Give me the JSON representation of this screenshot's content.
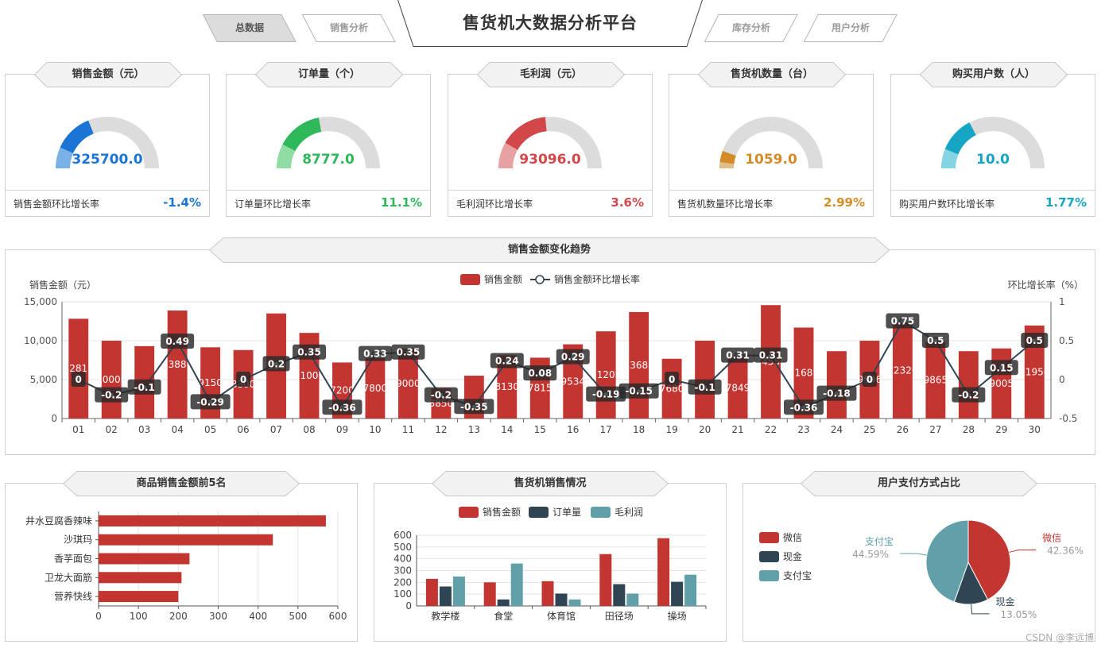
{
  "nav": {
    "tabs_left": [
      {
        "label": "总数据",
        "active": true
      },
      {
        "label": "销售分析",
        "active": false
      }
    ],
    "title": "售货机大数据分析平台",
    "tabs_right": [
      {
        "label": "库存分析",
        "active": false
      },
      {
        "label": "用户分析",
        "active": false
      }
    ]
  },
  "kpis": [
    {
      "title": "销售金额（元）",
      "value": "325700.0",
      "fill": 0.38,
      "color": "#1b75d4",
      "light": "#7ab2e8",
      "footer_label": "销售金额环比增长率",
      "footer_value": "-1.4%"
    },
    {
      "title": "订单量（个）",
      "value": "8777.0",
      "fill": 0.44,
      "color": "#2fb85a",
      "light": "#8fdca5",
      "footer_label": "订单量环比增长率",
      "footer_value": "11.1%"
    },
    {
      "title": "毛利润（元）",
      "value": "93096.0",
      "fill": 0.47,
      "color": "#d2474a",
      "light": "#e8a1a3",
      "footer_label": "毛利润环比增长率",
      "footer_value": "3.6%"
    },
    {
      "title": "售货机数量（台）",
      "value": "1059.0",
      "fill": 0.11,
      "color": "#d38c28",
      "light": "#e3bd87",
      "footer_label": "售货机数量环比增长率",
      "footer_value": "2.99%"
    },
    {
      "title": "购买用户数（人）",
      "value": "10.0",
      "fill": 0.35,
      "color": "#17a5c6",
      "light": "#85d4e3",
      "footer_label": "购买用户数环比增长率",
      "footer_value": "1.77%"
    }
  ],
  "trend": {
    "title": "销售金额变化趋势",
    "footer": "CSDN @李远博"
  },
  "top5": {
    "title": "商品销售金额前5名"
  },
  "machine": {
    "title": "售货机销售情况"
  },
  "payment": {
    "title": "用户支付方式占比"
  },
  "chart_data": [
    {
      "type": "bar",
      "name": "sales_trend",
      "title": "销售金额变化趋势",
      "legend": [
        "销售金额",
        "销售金额环比增长率"
      ],
      "ylabel": "销售金额（元）",
      "ylabel_right": "环比增长率（%）",
      "ylim": [
        0,
        15000
      ],
      "yticks": [
        "0",
        "5,000",
        "10,000",
        "15,000"
      ],
      "ylim_right": [
        -0.5,
        1
      ],
      "yticks_right": [
        "-0.5",
        "0",
        "0.5",
        "1"
      ],
      "categories": [
        "01",
        "02",
        "03",
        "04",
        "05",
        "06",
        "07",
        "08",
        "09",
        "10",
        "11",
        "12",
        "13",
        "14",
        "15",
        "16",
        "17",
        "18",
        "19",
        "20",
        "21",
        "22",
        "23",
        "24",
        "25",
        "26",
        "27",
        "28",
        "29",
        "30"
      ],
      "series": [
        {
          "name": "销售金额",
          "type": "bar",
          "color": "#c23531",
          "values": [
            12817,
            10000,
            9300,
            13880,
            9150,
            8800,
            13500,
            11000,
            7200,
            7800,
            9000,
            3850,
            5500,
            8130,
            7815,
            9534,
            11205,
            13680,
            7680,
            10000,
            7849,
            14568,
            11689,
            8650,
            9996,
            12320,
            9865,
            8650,
            9005,
            11950
          ],
          "labels": [
            "12817",
            "10000",
            "",
            "13880",
            "9150",
            "8800",
            "13500",
            "11000",
            "7200",
            "7800",
            "9000",
            "3850",
            "",
            "8130",
            "7815",
            "9534",
            "11205",
            "13680",
            "7680",
            "",
            "7849",
            "14568",
            "11689",
            "",
            "9996",
            "12320",
            "9865",
            "",
            "9005",
            "11950"
          ]
        },
        {
          "name": "销售金额环比增长率",
          "type": "line",
          "color": "#2f4554",
          "values": [
            0,
            -0.2,
            -0.1,
            0.49,
            -0.29,
            0,
            0.2,
            0.35,
            -0.36,
            0.33,
            0.35,
            -0.2,
            -0.35,
            0.24,
            0.08,
            0.29,
            -0.19,
            -0.15,
            0,
            -0.1,
            0.31,
            0.31,
            -0.36,
            -0.18,
            0,
            0.75,
            0.5,
            -0.2,
            0.15,
            0.5
          ]
        }
      ]
    },
    {
      "type": "bar",
      "name": "top5_products",
      "orientation": "horizontal",
      "title": "商品销售金额前5名",
      "categories": [
        "井水豆腐香辣味",
        "沙琪玛",
        "香芋面包",
        "卫龙大面筋",
        "营养快线"
      ],
      "values": [
        570,
        437,
        228,
        208,
        200
      ],
      "xlim": [
        0,
        600
      ],
      "xticks": [
        "0",
        "100",
        "200",
        "300",
        "400",
        "500",
        "600"
      ]
    },
    {
      "type": "bar",
      "name": "machine_sales",
      "title": "售货机销售情况",
      "categories": [
        "教学楼",
        "食堂",
        "体育馆",
        "田径场",
        "操场"
      ],
      "ylim": [
        0,
        600
      ],
      "yticks": [
        "0",
        "100",
        "200",
        "300",
        "400",
        "500",
        "600"
      ],
      "series": [
        {
          "name": "销售金额",
          "color": "#c23531",
          "values": [
            230,
            200,
            210,
            440,
            575
          ]
        },
        {
          "name": "订单量",
          "color": "#2f4554",
          "values": [
            165,
            55,
            105,
            185,
            205
          ]
        },
        {
          "name": "毛利润",
          "color": "#61a0a8",
          "values": [
            250,
            360,
            55,
            105,
            265
          ]
        }
      ]
    },
    {
      "type": "pie",
      "name": "payment_methods",
      "title": "用户支付方式占比",
      "legend": [
        "微信",
        "现金",
        "支付宝"
      ],
      "slices": [
        {
          "name": "微信",
          "value": 42.36,
          "label": "42.36%",
          "color": "#c23531"
        },
        {
          "name": "现金",
          "value": 13.05,
          "label": "13.05%",
          "color": "#2f4554"
        },
        {
          "name": "支付宝",
          "value": 44.59,
          "label": "44.59%",
          "color": "#61a0a8"
        }
      ]
    }
  ]
}
